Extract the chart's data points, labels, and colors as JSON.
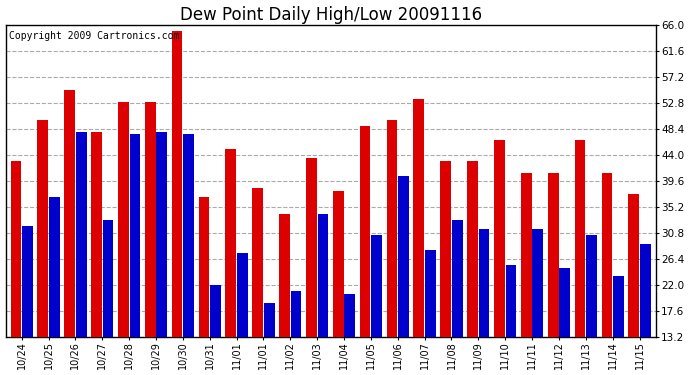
{
  "title": "Dew Point Daily High/Low 20091116",
  "copyright": "Copyright 2009 Cartronics.com",
  "categories": [
    "10/24",
    "10/25",
    "10/26",
    "10/27",
    "10/28",
    "10/29",
    "10/30",
    "10/31",
    "11/01",
    "11/01",
    "11/02",
    "11/03",
    "11/04",
    "11/05",
    "11/06",
    "11/07",
    "11/08",
    "11/09",
    "11/10",
    "11/11",
    "11/12",
    "11/13",
    "11/14",
    "11/15"
  ],
  "high_values": [
    43.0,
    50.0,
    55.0,
    48.0,
    53.0,
    53.0,
    65.0,
    37.0,
    45.0,
    38.5,
    34.0,
    43.5,
    38.0,
    49.0,
    50.0,
    53.5,
    43.0,
    43.0,
    46.5,
    41.0,
    41.0,
    46.5,
    41.0,
    37.5
  ],
  "low_values": [
    32.0,
    37.0,
    48.0,
    33.0,
    47.5,
    48.0,
    47.5,
    22.0,
    27.5,
    19.0,
    21.0,
    34.0,
    20.5,
    30.5,
    40.5,
    28.0,
    33.0,
    31.5,
    25.5,
    31.5,
    25.0,
    30.5,
    23.5,
    29.0
  ],
  "bar_color_high": "#dd0000",
  "bar_color_low": "#0000cc",
  "bg_color": "#ffffff",
  "plot_bg_color": "#ffffff",
  "grid_color": "#aaaaaa",
  "title_fontsize": 12,
  "copyright_fontsize": 7,
  "yticks": [
    13.2,
    17.6,
    22.0,
    26.4,
    30.8,
    35.2,
    39.6,
    44.0,
    48.4,
    52.8,
    57.2,
    61.6,
    66.0
  ],
  "ymin": 13.2,
  "ymax": 66.0,
  "ybaseline": 13.2
}
